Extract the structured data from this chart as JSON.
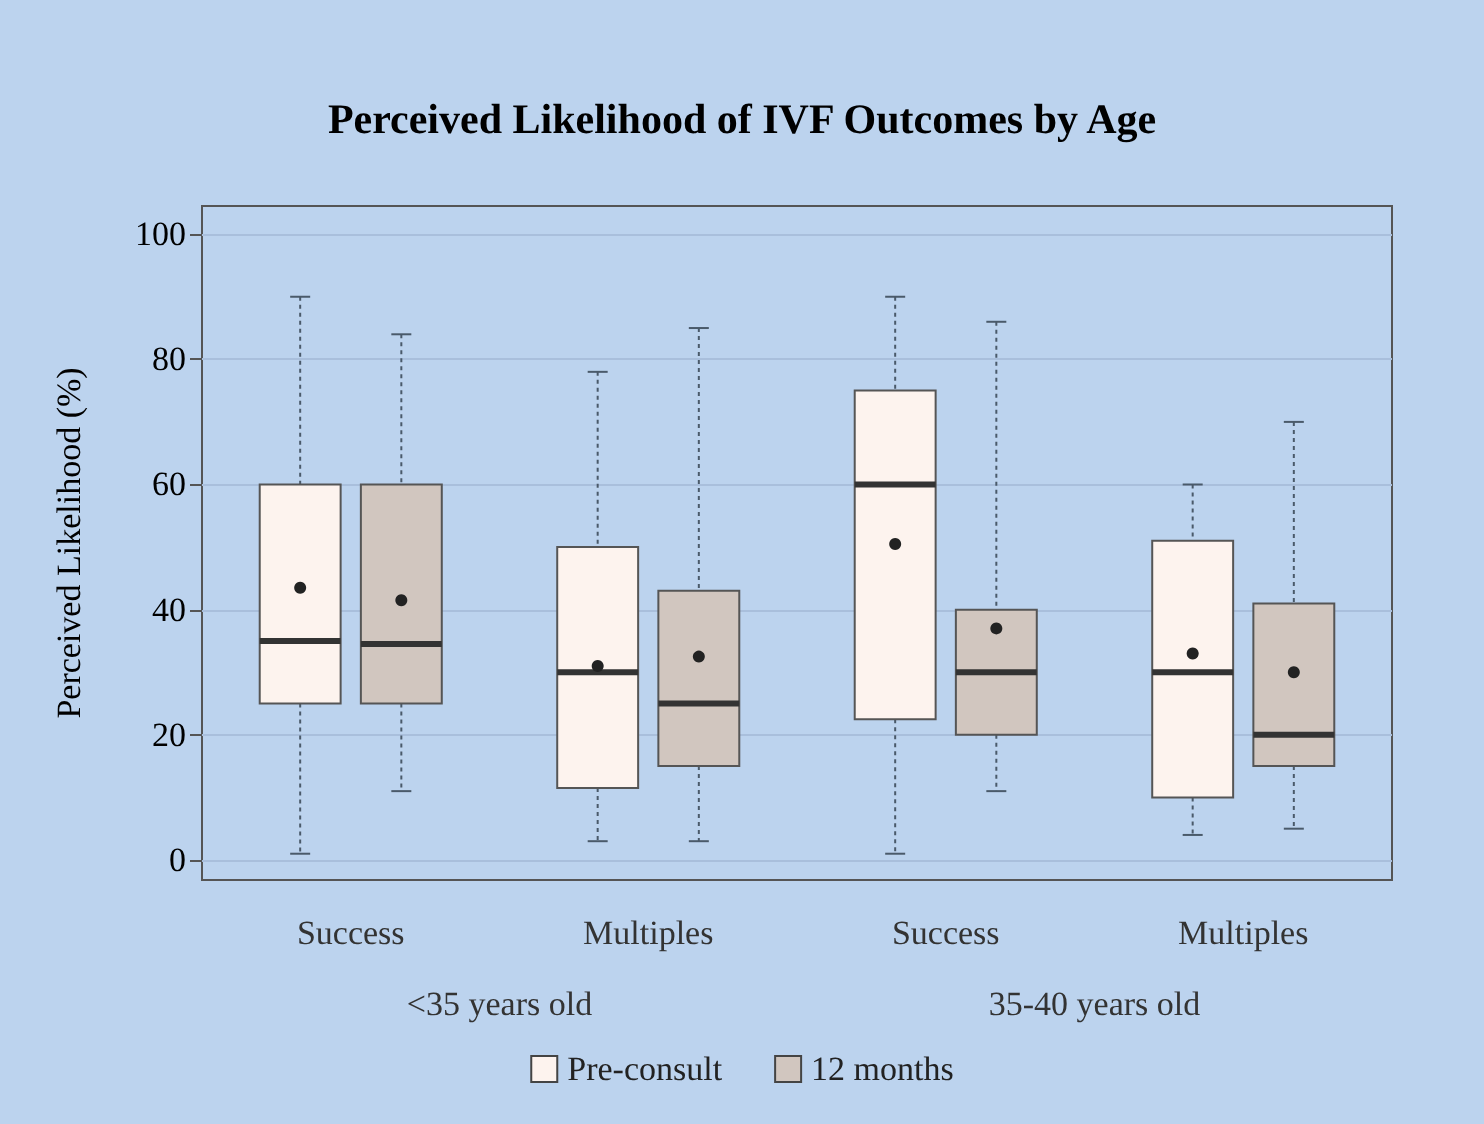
{
  "chart_data": {
    "type": "box",
    "title": "Perceived Likelihood of IVF Outcomes by Age",
    "ylabel": "Perceived Likelihood (%)",
    "categories": [
      "Success",
      "Multiples",
      "Success",
      "Multiples"
    ],
    "annotations": [
      "<35 years old",
      "35-40 years old"
    ],
    "ylim": [
      -3.2,
      104.5
    ],
    "yticks": [
      0,
      20,
      40,
      60,
      80,
      100
    ],
    "grid": "y",
    "legend": "bottom",
    "marker": "circle",
    "series": [
      {
        "name": "Pre-consult",
        "color": "#fdf3ee",
        "boxes": [
          {
            "low": 1,
            "q1": 25,
            "median": 35,
            "q3": 60,
            "high": 90,
            "mean": 43.5
          },
          {
            "low": 3,
            "q1": 11.5,
            "median": 30,
            "q3": 50,
            "high": 78,
            "mean": 31
          },
          {
            "low": 1,
            "q1": 22.5,
            "median": 60,
            "q3": 75,
            "high": 90,
            "mean": 50.5
          },
          {
            "low": 4,
            "q1": 10,
            "median": 30,
            "q3": 51,
            "high": 60,
            "mean": 33
          }
        ]
      },
      {
        "name": "12 months",
        "color": "#d1c6bf",
        "boxes": [
          {
            "low": 11,
            "q1": 25,
            "median": 34.5,
            "q3": 60,
            "high": 84,
            "mean": 41.5
          },
          {
            "low": 3,
            "q1": 15,
            "median": 25,
            "q3": 43,
            "high": 85,
            "mean": 32.5
          },
          {
            "low": 11,
            "q1": 20,
            "median": 30,
            "q3": 40,
            "high": 86,
            "mean": 37
          },
          {
            "low": 5,
            "q1": 15,
            "median": 20,
            "q3": 41,
            "high": 70,
            "mean": 30
          }
        ]
      }
    ]
  }
}
